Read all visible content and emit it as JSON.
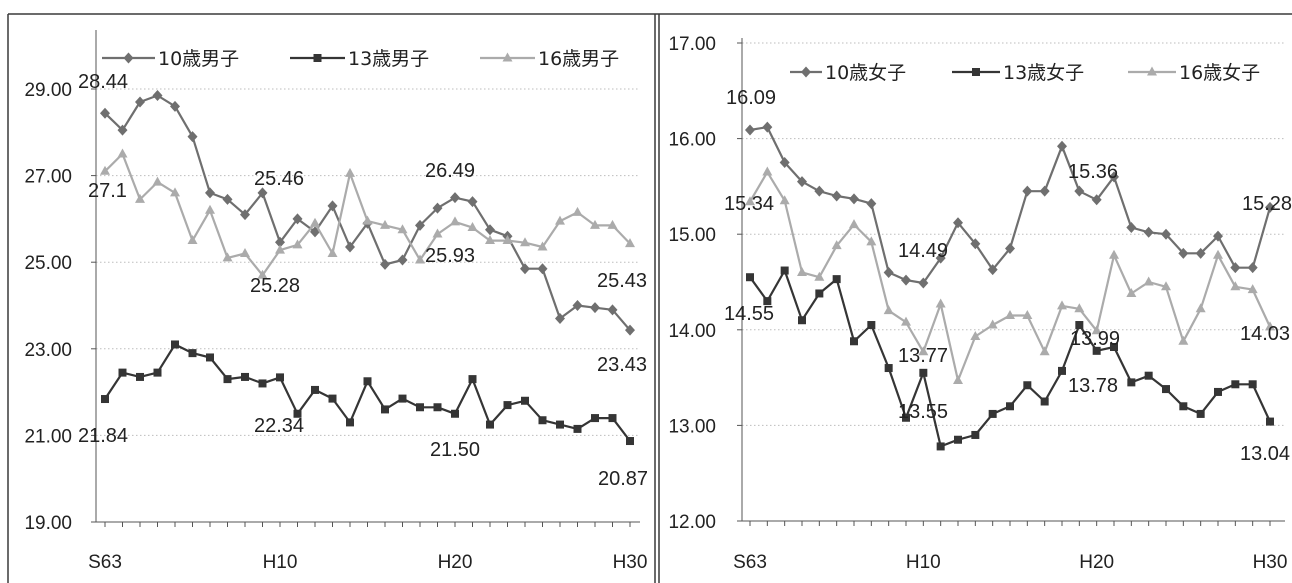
{
  "chart_data": [
    {
      "type": "line",
      "x_range": [
        "S63",
        "H30"
      ],
      "x_ticks": [
        "S63",
        "H10",
        "H20",
        "H30"
      ],
      "y_ticks": [
        "19.00",
        "21.00",
        "23.00",
        "25.00",
        "27.00",
        "29.00"
      ],
      "ylim": [
        19,
        29
      ],
      "grid": true,
      "legend": "top",
      "series": [
        {
          "name": "10歳男子",
          "color": "#6f6f6f",
          "marker": "diamond",
          "values": [
            28.44,
            28.05,
            28.7,
            28.85,
            28.6,
            27.9,
            26.6,
            26.45,
            26.1,
            26.6,
            25.46,
            26.0,
            25.7,
            26.3,
            25.35,
            25.9,
            24.95,
            25.05,
            25.85,
            26.25,
            26.49,
            26.4,
            25.75,
            25.6,
            24.85,
            24.85,
            23.7,
            24.0,
            23.95,
            23.9,
            23.43
          ],
          "labels": [
            {
              "x": "S63",
              "text": "28.44"
            },
            {
              "x": "H10",
              "text": "25.46"
            },
            {
              "x": "H20",
              "text": "26.49"
            },
            {
              "x": "H30",
              "text": "23.43"
            }
          ]
        },
        {
          "name": "13歳男子",
          "color": "#353535",
          "marker": "square",
          "values": [
            21.84,
            22.45,
            22.35,
            22.45,
            23.1,
            22.9,
            22.8,
            22.3,
            22.35,
            22.2,
            22.34,
            21.5,
            22.05,
            21.85,
            21.3,
            22.25,
            21.6,
            21.85,
            21.65,
            21.65,
            21.5,
            22.3,
            21.25,
            21.7,
            21.8,
            21.35,
            21.25,
            21.15,
            21.4,
            21.4,
            20.87
          ],
          "labels": [
            {
              "x": "S63",
              "text": "21.84"
            },
            {
              "x": "H10",
              "text": "22.34"
            },
            {
              "x": "H20",
              "text": "21.50"
            },
            {
              "x": "H30",
              "text": "20.87"
            }
          ]
        },
        {
          "name": "16歳男子",
          "color": "#ababab",
          "marker": "triangle",
          "values": [
            27.1,
            27.5,
            26.45,
            26.85,
            26.6,
            25.5,
            26.2,
            25.1,
            25.2,
            24.7,
            25.28,
            25.4,
            25.9,
            25.2,
            27.05,
            25.95,
            25.85,
            25.75,
            25.05,
            25.65,
            25.93,
            25.8,
            25.5,
            25.5,
            25.45,
            25.35,
            25.95,
            26.15,
            25.85,
            25.85,
            25.43
          ],
          "labels": [
            {
              "x": "S63",
              "text": "27.1"
            },
            {
              "x": "H10",
              "text": "25.28"
            },
            {
              "x": "H20",
              "text": "25.93"
            },
            {
              "x": "H30",
              "text": "25.43"
            }
          ]
        }
      ]
    },
    {
      "type": "line",
      "x_range": [
        "S63",
        "H30"
      ],
      "x_ticks": [
        "S63",
        "H10",
        "H20",
        "H30"
      ],
      "y_ticks": [
        "12.00",
        "13.00",
        "14.00",
        "15.00",
        "16.00",
        "17.00"
      ],
      "ylim": [
        12,
        17
      ],
      "grid": true,
      "legend": "top",
      "series": [
        {
          "name": "10歳女子",
          "color": "#6f6f6f",
          "marker": "diamond",
          "values": [
            16.09,
            16.12,
            15.75,
            15.55,
            15.45,
            15.4,
            15.37,
            15.32,
            14.6,
            14.52,
            14.49,
            14.75,
            15.12,
            14.9,
            14.63,
            14.85,
            15.45,
            15.45,
            15.92,
            15.45,
            15.36,
            15.6,
            15.07,
            15.02,
            15.0,
            14.8,
            14.8,
            14.98,
            14.65,
            14.65,
            15.28
          ],
          "labels": [
            {
              "x": "S63",
              "text": "16.09"
            },
            {
              "x": "H10",
              "text": "14.49"
            },
            {
              "x": "H20",
              "text": "15.36"
            },
            {
              "x": "H30",
              "text": "15.28"
            }
          ]
        },
        {
          "name": "13歳女子",
          "color": "#353535",
          "marker": "square",
          "values": [
            14.55,
            14.3,
            14.62,
            14.1,
            14.38,
            14.53,
            13.88,
            14.05,
            13.6,
            13.08,
            13.55,
            12.78,
            12.85,
            12.9,
            13.12,
            13.2,
            13.42,
            13.25,
            13.57,
            14.05,
            13.78,
            13.82,
            13.45,
            13.52,
            13.38,
            13.2,
            13.12,
            13.35,
            13.43,
            13.43,
            13.04
          ],
          "labels": [
            {
              "x": "S63",
              "text": "14.55"
            },
            {
              "x": "H10",
              "text": "13.55"
            },
            {
              "x": "H20",
              "text": "13.78"
            },
            {
              "x": "H30",
              "text": "13.04"
            }
          ]
        },
        {
          "name": "16歳女子",
          "color": "#ababab",
          "marker": "triangle",
          "values": [
            15.34,
            15.65,
            15.35,
            14.6,
            14.55,
            14.88,
            15.1,
            14.92,
            14.2,
            14.08,
            13.77,
            14.27,
            13.47,
            13.93,
            14.05,
            14.15,
            14.15,
            13.77,
            14.25,
            14.22,
            13.99,
            14.78,
            14.38,
            14.5,
            14.45,
            13.88,
            14.22,
            14.78,
            14.45,
            14.42,
            14.03
          ],
          "labels": [
            {
              "x": "S63",
              "text": "15.34"
            },
            {
              "x": "H10",
              "text": "13.77"
            },
            {
              "x": "H20",
              "text": "13.99"
            },
            {
              "x": "H30",
              "text": "14.03"
            }
          ]
        }
      ]
    }
  ]
}
